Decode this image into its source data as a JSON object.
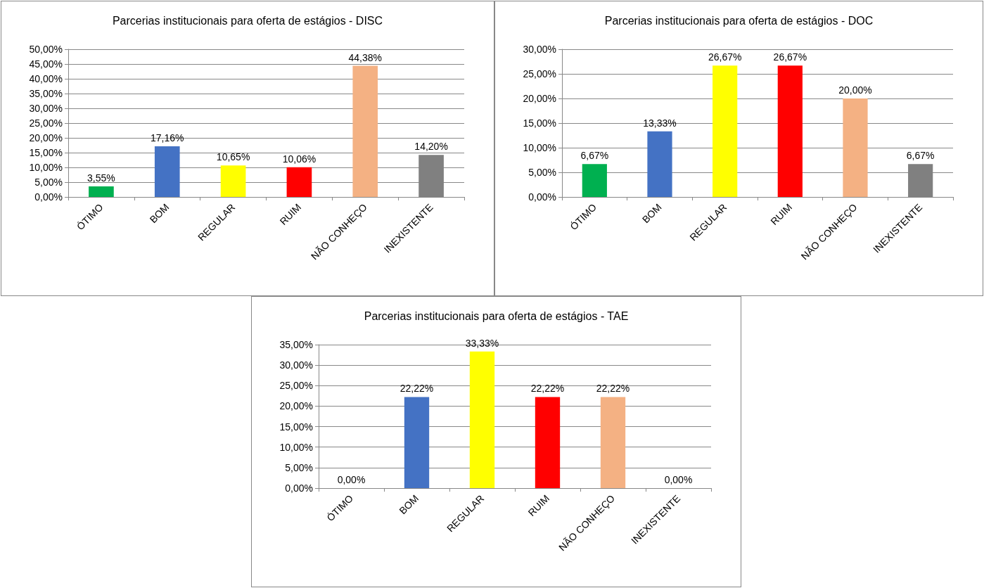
{
  "chart_data": [
    {
      "type": "bar",
      "title": "Parcerias institucionais para oferta de estágios - DISC",
      "categories": [
        "ÓTIMO",
        "BOM",
        "REGULAR",
        "RUIM",
        "NÃO CONHEÇO",
        "INEXISTENTE"
      ],
      "values": [
        3.55,
        17.16,
        10.65,
        10.06,
        44.38,
        14.2
      ],
      "value_labels": [
        "3,55%",
        "17,16%",
        "10,65%",
        "10,06%",
        "44,38%",
        "14,20%"
      ],
      "colors": [
        "#00b050",
        "#4472c4",
        "#ffff00",
        "#ff0000",
        "#f4b183",
        "#808080"
      ],
      "ylim": [
        0,
        50
      ],
      "yticks": [
        {
          "value": 0,
          "label": "0,00%"
        },
        {
          "value": 5,
          "label": "5,00%"
        },
        {
          "value": 10,
          "label": "10,00%"
        },
        {
          "value": 15,
          "label": "15,00%"
        },
        {
          "value": 20,
          "label": "20,00%"
        },
        {
          "value": 25,
          "label": "25,00%"
        },
        {
          "value": 30,
          "label": "30,00%"
        },
        {
          "value": 35,
          "label": "35,00%"
        },
        {
          "value": 40,
          "label": "40,00%"
        },
        {
          "value": 45,
          "label": "45,00%"
        },
        {
          "value": 50,
          "label": "50,00%"
        }
      ],
      "grid": "y"
    },
    {
      "type": "bar",
      "title": "Parcerias institucionais para oferta de estágios - DOC",
      "categories": [
        "ÓTIMO",
        "BOM",
        "REGULAR",
        "RUIM",
        "NÃO CONHEÇO",
        "INEXISTENTE"
      ],
      "values": [
        6.67,
        13.33,
        26.67,
        26.67,
        20.0,
        6.67
      ],
      "value_labels": [
        "6,67%",
        "13,33%",
        "26,67%",
        "26,67%",
        "20,00%",
        "6,67%"
      ],
      "colors": [
        "#00b050",
        "#4472c4",
        "#ffff00",
        "#ff0000",
        "#f4b183",
        "#808080"
      ],
      "ylim": [
        0,
        30
      ],
      "yticks": [
        {
          "value": 0,
          "label": "0,00%"
        },
        {
          "value": 5,
          "label": "5,00%"
        },
        {
          "value": 10,
          "label": "10,00%"
        },
        {
          "value": 15,
          "label": "15,00%"
        },
        {
          "value": 20,
          "label": "20,00%"
        },
        {
          "value": 25,
          "label": "25,00%"
        },
        {
          "value": 30,
          "label": "30,00%"
        }
      ],
      "grid": "y"
    },
    {
      "type": "bar",
      "title": "Parcerias institucionais para oferta de estágios - TAE",
      "categories": [
        "ÓTIMO",
        "BOM",
        "REGULAR",
        "RUIM",
        "NÃO CONHEÇO",
        "INEXISTENTE"
      ],
      "values": [
        0,
        22.22,
        33.33,
        22.22,
        22.22,
        0
      ],
      "value_labels": [
        "0,00%",
        "22,22%",
        "33,33%",
        "22,22%",
        "22,22%",
        "0,00%"
      ],
      "colors": [
        "#00b050",
        "#4472c4",
        "#ffff00",
        "#ff0000",
        "#f4b183",
        "#808080"
      ],
      "ylim": [
        0,
        35
      ],
      "yticks": [
        {
          "value": 0,
          "label": "0,00%"
        },
        {
          "value": 5,
          "label": "5,00%"
        },
        {
          "value": 10,
          "label": "10,00%"
        },
        {
          "value": 15,
          "label": "15,00%"
        },
        {
          "value": 20,
          "label": "20,00%"
        },
        {
          "value": 25,
          "label": "25,00%"
        },
        {
          "value": 30,
          "label": "30,00%"
        },
        {
          "value": 35,
          "label": "35,00%"
        }
      ],
      "grid": "y"
    }
  ]
}
